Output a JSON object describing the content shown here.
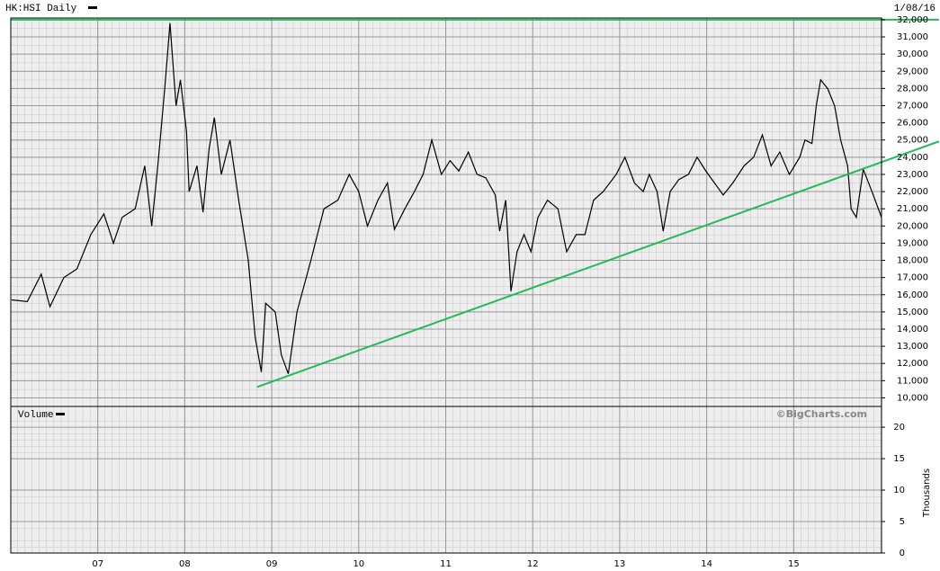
{
  "chart_data": [
    {
      "type": "line",
      "title": "HK:HSI Daily",
      "date_label": "1/08/16",
      "watermark": "©BigCharts.com",
      "x": [
        2006.01,
        2006.19,
        2006.35,
        2006.45,
        2006.61,
        2006.76,
        2006.92,
        2007.07,
        2007.18,
        2007.28,
        2007.43,
        2007.54,
        2007.62,
        2007.69,
        2007.77,
        2007.83,
        2007.9,
        2007.95,
        2008.02,
        2008.05,
        2008.14,
        2008.21,
        2008.28,
        2008.34,
        2008.42,
        2008.52,
        2008.62,
        2008.73,
        2008.81,
        2008.88,
        2008.93,
        2009.04,
        2009.11,
        2009.19,
        2009.29,
        2009.45,
        2009.6,
        2009.76,
        2009.89,
        2010.0,
        2010.1,
        2010.22,
        2010.33,
        2010.41,
        2010.53,
        2010.64,
        2010.74,
        2010.84,
        2010.95,
        2011.05,
        2011.15,
        2011.26,
        2011.36,
        2011.46,
        2011.57,
        2011.62,
        2011.69,
        2011.75,
        2011.82,
        2011.9,
        2011.98,
        2012.06,
        2012.17,
        2012.29,
        2012.39,
        2012.5,
        2012.6,
        2012.7,
        2012.81,
        2012.96,
        2013.06,
        2013.17,
        2013.27,
        2013.34,
        2013.43,
        2013.5,
        2013.58,
        2013.68,
        2013.79,
        2013.89,
        2013.99,
        2014.09,
        2014.19,
        2014.3,
        2014.43,
        2014.54,
        2014.64,
        2014.74,
        2014.84,
        2014.95,
        2015.07,
        2015.13,
        2015.21,
        2015.26,
        2015.31,
        2015.39,
        2015.47,
        2015.54,
        2015.62,
        2015.66,
        2015.72,
        2015.8,
        2015.9,
        2016.01
      ],
      "series": [
        {
          "color": "#000000",
          "values": [
            15700,
            15600,
            17200,
            15300,
            17000,
            17500,
            19500,
            20700,
            19000,
            20500,
            21000,
            23500,
            20000,
            23500,
            28000,
            31800,
            27000,
            28500,
            25500,
            22000,
            23500,
            20800,
            24500,
            26300,
            23000,
            25000,
            21500,
            18000,
            13500,
            11500,
            15500,
            15000,
            12500,
            11400,
            15000,
            18000,
            21000,
            21500,
            23000,
            22000,
            20000,
            21500,
            22500,
            19800,
            21000,
            22000,
            23000,
            25000,
            23000,
            23800,
            23200,
            24300,
            23000,
            22800,
            21800,
            19700,
            21500,
            16200,
            18500,
            19500,
            18500,
            20500,
            21500,
            21000,
            18500,
            19500,
            19500,
            21500,
            22000,
            23000,
            24000,
            22500,
            22000,
            23000,
            22000,
            19700,
            22000,
            22700,
            23000,
            24000,
            23200,
            22500,
            21800,
            22500,
            23500,
            24000,
            25300,
            23500,
            24300,
            23000,
            24000,
            25000,
            24800,
            27000,
            28500,
            28000,
            27000,
            25000,
            23500,
            21000,
            20500,
            23300,
            22000,
            20500
          ]
        }
      ],
      "annotations": [
        {
          "color": "#22bb55",
          "x": [
            2006.0,
            2016.67
          ],
          "y": [
            32000,
            32000
          ]
        },
        {
          "color": "#22bb55",
          "x": [
            2008.83,
            2016.67
          ],
          "y": [
            10630,
            24920
          ]
        }
      ],
      "xlim": [
        2006.0,
        2016.01
      ],
      "xticks": [
        {
          "value": 2007,
          "label": "07"
        },
        {
          "value": 2008,
          "label": "08"
        },
        {
          "value": 2009,
          "label": "09"
        },
        {
          "value": 2010,
          "label": "10"
        },
        {
          "value": 2011,
          "label": "11"
        },
        {
          "value": 2012,
          "label": "12"
        },
        {
          "value": 2013,
          "label": "13"
        },
        {
          "value": 2014,
          "label": "14"
        },
        {
          "value": 2015,
          "label": "15"
        }
      ],
      "ylim": [
        9500,
        32100
      ],
      "yticks": [
        {
          "value": 10000,
          "label": "10,000"
        },
        {
          "value": 11000,
          "label": "11,000"
        },
        {
          "value": 12000,
          "label": "12,000"
        },
        {
          "value": 13000,
          "label": "13,000"
        },
        {
          "value": 14000,
          "label": "14,000"
        },
        {
          "value": 15000,
          "label": "15,000"
        },
        {
          "value": 16000,
          "label": "16,000"
        },
        {
          "value": 17000,
          "label": "17,000"
        },
        {
          "value": 18000,
          "label": "18,000"
        },
        {
          "value": 19000,
          "label": "19,000"
        },
        {
          "value": 20000,
          "label": "20,000"
        },
        {
          "value": 21000,
          "label": "21,000"
        },
        {
          "value": 22000,
          "label": "22,000"
        },
        {
          "value": 23000,
          "label": "23,000"
        },
        {
          "value": 24000,
          "label": "24,000"
        },
        {
          "value": 25000,
          "label": "25,000"
        },
        {
          "value": 26000,
          "label": "26,000"
        },
        {
          "value": 27000,
          "label": "27,000"
        },
        {
          "value": 28000,
          "label": "28,000"
        },
        {
          "value": 29000,
          "label": "29,000"
        },
        {
          "value": 30000,
          "label": "30,000"
        },
        {
          "value": 31000,
          "label": "31,000"
        },
        {
          "value": 32000,
          "label": "32,000"
        }
      ],
      "grid": true
    },
    {
      "type": "volume",
      "title": "Volume",
      "y_label": "Thousands",
      "ylim": [
        0,
        23.3
      ],
      "yticks": [
        0,
        5,
        10,
        15,
        20
      ],
      "grid": true
    }
  ]
}
